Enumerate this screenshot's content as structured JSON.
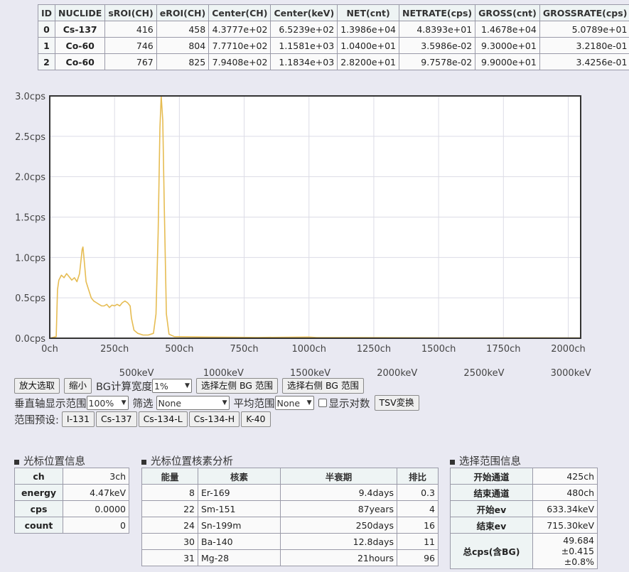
{
  "nuclide_table": {
    "headers": [
      "ID",
      "NUCLIDE",
      "sROI(CH)",
      "eROI(CH)",
      "Center(CH)",
      "Center(keV)",
      "NET(cnt)",
      "NETRATE(cps)",
      "GROSS(cnt)",
      "GROSSRATE(cps)"
    ],
    "rows": [
      [
        "0",
        "Cs-137",
        "416",
        "458",
        "4.3777e+02",
        "6.5239e+02",
        "1.3986e+04",
        "4.8393e+01",
        "1.4678e+04",
        "5.0789e+01"
      ],
      [
        "1",
        "Co-60",
        "746",
        "804",
        "7.7710e+02",
        "1.1581e+03",
        "1.0400e+01",
        "3.5986e-02",
        "9.3000e+01",
        "3.2180e-01"
      ],
      [
        "2",
        "Co-60",
        "767",
        "825",
        "7.9408e+02",
        "1.1834e+03",
        "2.8200e+01",
        "9.7578e-02",
        "9.9000e+01",
        "3.4256e-01"
      ]
    ]
  },
  "chart_data": {
    "type": "line",
    "x_unit": "ch",
    "y_unit": "cps",
    "xlim": [
      0,
      2048
    ],
    "ylim": [
      0,
      3.0
    ],
    "x_ticks": [
      0,
      250,
      500,
      750,
      1000,
      1250,
      1500,
      1750,
      2000
    ],
    "x_tick_labels": [
      "0ch",
      "250ch",
      "500ch",
      "750ch",
      "1000ch",
      "1250ch",
      "1500ch",
      "1750ch",
      "2000ch"
    ],
    "y_ticks": [
      0,
      0.5,
      1.0,
      1.5,
      2.0,
      2.5,
      3.0
    ],
    "y_tick_labels": [
      "0.0cps",
      "0.5cps",
      "1.0cps",
      "1.5cps",
      "2.0cps",
      "2.5cps",
      "3.0cps"
    ],
    "energy_axis": {
      "ticks_ch": [
        335,
        670,
        1005,
        1340,
        1675,
        2010
      ],
      "labels": [
        "500keV",
        "1000keV",
        "1500keV",
        "2000keV",
        "2500keV",
        "3000keV"
      ]
    },
    "grid": true,
    "series": [
      {
        "color": "#e6bc52",
        "points": [
          [
            0,
            0
          ],
          [
            25,
            0.02
          ],
          [
            30,
            0.6
          ],
          [
            35,
            0.72
          ],
          [
            45,
            0.78
          ],
          [
            55,
            0.75
          ],
          [
            65,
            0.8
          ],
          [
            75,
            0.76
          ],
          [
            85,
            0.72
          ],
          [
            95,
            0.75
          ],
          [
            105,
            0.7
          ],
          [
            115,
            0.8
          ],
          [
            120,
            0.95
          ],
          [
            125,
            1.1
          ],
          [
            128,
            1.13
          ],
          [
            132,
            1.0
          ],
          [
            140,
            0.7
          ],
          [
            150,
            0.6
          ],
          [
            160,
            0.5
          ],
          [
            170,
            0.46
          ],
          [
            180,
            0.44
          ],
          [
            190,
            0.42
          ],
          [
            200,
            0.4
          ],
          [
            210,
            0.4
          ],
          [
            220,
            0.42
          ],
          [
            230,
            0.38
          ],
          [
            240,
            0.41
          ],
          [
            250,
            0.4
          ],
          [
            260,
            0.42
          ],
          [
            270,
            0.4
          ],
          [
            280,
            0.44
          ],
          [
            290,
            0.46
          ],
          [
            300,
            0.44
          ],
          [
            310,
            0.4
          ],
          [
            315,
            0.25
          ],
          [
            325,
            0.1
          ],
          [
            340,
            0.06
          ],
          [
            360,
            0.04
          ],
          [
            380,
            0.04
          ],
          [
            400,
            0.06
          ],
          [
            410,
            0.3
          ],
          [
            418,
            1.3
          ],
          [
            425,
            2.6
          ],
          [
            430,
            3.0
          ],
          [
            436,
            2.7
          ],
          [
            442,
            1.6
          ],
          [
            450,
            0.3
          ],
          [
            460,
            0.05
          ],
          [
            480,
            0.02
          ],
          [
            600,
            0.015
          ],
          [
            700,
            0.012
          ],
          [
            800,
            0.01
          ],
          [
            1000,
            0.015
          ],
          [
            1030,
            0.008
          ],
          [
            1200,
            0.008
          ],
          [
            1500,
            0.005
          ],
          [
            1700,
            0.005
          ],
          [
            2048,
            0.004
          ]
        ]
      }
    ]
  },
  "controls": {
    "zoom_in": "放大选取",
    "zoom_out": "缩小",
    "bg_width_label": "BG计算宽度",
    "bg_width_value": "1%",
    "select_left_bg": "选择左侧 BG 范围",
    "select_right_bg": "选择右侧 BG 范围",
    "vertical_range_label": "垂直轴显示范围",
    "vertical_range_value": "100%",
    "filter_label": "筛选",
    "filter_value": "None",
    "avg_range_label": "平均范围",
    "avg_range_value": "None",
    "log_label": "显示对数",
    "log_checked": false,
    "tsv_button": "TSV変换",
    "preset_label": "范围预设:",
    "presets": [
      "I-131",
      "Cs-137",
      "Cs-134-L",
      "Cs-134-H",
      "K-40"
    ]
  },
  "cursor_info": {
    "title": "光标位置信息",
    "rows": [
      {
        "label": "ch",
        "value": "3ch"
      },
      {
        "label": "energy",
        "value": "4.47keV"
      },
      {
        "label": "cps",
        "value": "0.0000"
      },
      {
        "label": "count",
        "value": "0"
      }
    ]
  },
  "nuclide_analysis": {
    "title": "光标位置核素分析",
    "headers": [
      "能量",
      "核素",
      "半衰期",
      "排比"
    ],
    "rows": [
      [
        "8",
        "Er-169",
        "9.4days",
        "0.3"
      ],
      [
        "22",
        "Sm-151",
        "87years",
        "4"
      ],
      [
        "24",
        "Sn-199m",
        "250days",
        "16"
      ],
      [
        "30",
        "Ba-140",
        "12.8days",
        "11"
      ],
      [
        "31",
        "Mg-28",
        "21hours",
        "96"
      ]
    ]
  },
  "range_info": {
    "title": "选择范围信息",
    "rows": [
      {
        "label": "开始通道",
        "value": "425ch"
      },
      {
        "label": "结束通道",
        "value": "480ch"
      },
      {
        "label": "开始ev",
        "value": "633.34keV"
      },
      {
        "label": "结束ev",
        "value": "715.30keV"
      }
    ],
    "total_label": "总cps(含BG)",
    "total_value": "49.684",
    "total_err": "±0.415",
    "total_pct": "±0.8%"
  }
}
